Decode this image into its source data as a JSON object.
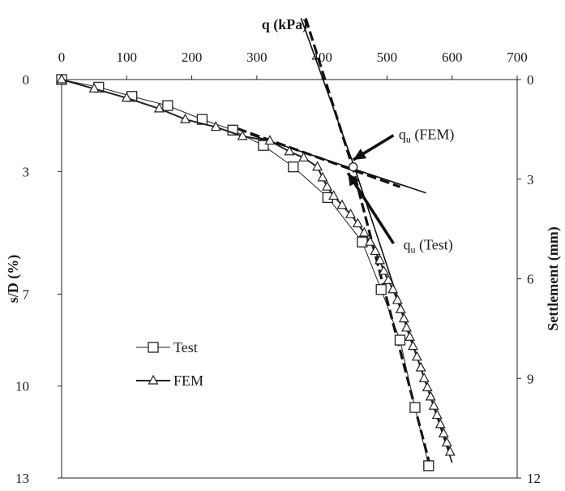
{
  "chart_data": {
    "type": "line",
    "xlabel": "q (kPa)",
    "ylabel_left": "s/D (%)",
    "ylabel_right": "Settlement (mm)",
    "x_axis_position": "top",
    "xlim": [
      0,
      700
    ],
    "ylim_left": [
      0,
      13
    ],
    "ylim_right": [
      0,
      12
    ],
    "y_inverted": true,
    "x_ticks": [
      "0",
      "100",
      "200",
      "300",
      "400",
      "500",
      "600",
      "700"
    ],
    "y_left_ticks": [
      "0",
      "3",
      "7",
      "10",
      "13"
    ],
    "y_right_ticks": [
      "0",
      "3",
      "6",
      "9",
      "12"
    ],
    "grid": false,
    "legend_position": "lower-left",
    "series": [
      {
        "name": "Test",
        "marker": "square",
        "points": [
          [
            0,
            0.0
          ],
          [
            57,
            0.25
          ],
          [
            108,
            0.55
          ],
          [
            163,
            0.85
          ],
          [
            216,
            1.3
          ],
          [
            263,
            1.65
          ],
          [
            310,
            2.15
          ],
          [
            356,
            2.85
          ],
          [
            409,
            3.85
          ],
          [
            462,
            5.3
          ],
          [
            491,
            6.85
          ],
          [
            520,
            8.5
          ],
          [
            543,
            10.7
          ],
          [
            564,
            12.6
          ]
        ]
      },
      {
        "name": "FEM",
        "marker": "triangle",
        "points": [
          [
            0,
            0.0
          ],
          [
            50,
            0.3
          ],
          [
            100,
            0.6
          ],
          [
            150,
            0.95
          ],
          [
            190,
            1.3
          ],
          [
            237,
            1.55
          ],
          [
            278,
            1.85
          ],
          [
            320,
            2.0
          ],
          [
            350,
            2.35
          ],
          [
            372,
            2.55
          ],
          [
            393,
            2.85
          ],
          [
            401,
            3.2
          ],
          [
            408,
            3.5
          ],
          [
            418,
            3.8
          ],
          [
            431,
            4.1
          ],
          [
            444,
            4.4
          ],
          [
            455,
            4.7
          ],
          [
            465,
            5.0
          ],
          [
            474,
            5.3
          ],
          [
            482,
            5.6
          ],
          [
            489,
            5.9
          ],
          [
            495,
            6.25
          ],
          [
            502,
            6.55
          ],
          [
            509,
            6.85
          ],
          [
            516,
            7.2
          ],
          [
            521,
            7.5
          ],
          [
            526,
            7.8
          ],
          [
            530,
            8.1
          ],
          [
            535,
            8.4
          ],
          [
            540,
            8.7
          ],
          [
            546,
            9.05
          ],
          [
            552,
            9.4
          ],
          [
            557,
            9.75
          ],
          [
            562,
            10.05
          ],
          [
            567,
            10.35
          ],
          [
            572,
            10.65
          ],
          [
            577,
            10.95
          ],
          [
            582,
            11.25
          ],
          [
            587,
            11.55
          ],
          [
            592,
            11.85
          ],
          [
            597,
            12.15
          ]
        ]
      }
    ],
    "construction_lines": [
      {
        "style": "dashed-thick",
        "points": [
          [
            375,
            -2.0
          ],
          [
            447,
            2.85
          ],
          [
            568,
            12.75
          ]
        ]
      },
      {
        "style": "dashed-thick",
        "points": [
          [
            270,
            1.6
          ],
          [
            520,
            3.5
          ]
        ]
      },
      {
        "style": "solid",
        "points": [
          [
            368,
            -2.0
          ],
          [
            449,
            2.8
          ]
        ]
      },
      {
        "style": "solid",
        "points": [
          [
            449,
            2.8
          ],
          [
            600,
            12.5
          ]
        ]
      },
      {
        "style": "solid",
        "points": [
          [
            290,
            1.8
          ],
          [
            560,
            3.7
          ]
        ]
      }
    ],
    "annotations": [
      {
        "main": "q",
        "sub": "u",
        "rest": " (FEM)",
        "label_at": [
          518,
          1.95
        ],
        "arrow_from": [
          510,
          1.82
        ],
        "arrow_to": [
          448,
          2.62
        ]
      },
      {
        "main": "q",
        "sub": "u",
        "rest": " (Test)",
        "label_at": [
          525,
          5.55
        ],
        "arrow_from": [
          510,
          5.35
        ],
        "arrow_to": [
          440,
          3.05
        ]
      }
    ],
    "intersection_markers": [
      [
        448,
        2.85
      ]
    ]
  }
}
